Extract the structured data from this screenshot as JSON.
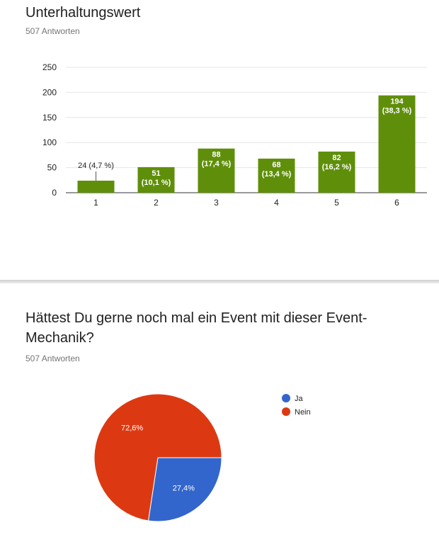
{
  "question1": {
    "title": "Unterhaltungswert",
    "responses": "507 Antworten"
  },
  "question2": {
    "title": "Hättest Du gerne noch mal ein Event mit dieser Event-Mechanik?",
    "responses": "507 Antworten"
  },
  "colors": {
    "bar": "#5f8f0a",
    "gridline": "#e6e6e6",
    "ja": "#3366cc",
    "nein": "#dc3912"
  },
  "chart_data": [
    {
      "type": "bar",
      "title": "Unterhaltungswert",
      "categories": [
        "1",
        "2",
        "3",
        "4",
        "5",
        "6"
      ],
      "values": [
        24,
        51,
        88,
        68,
        82,
        194
      ],
      "labels": [
        [
          "24 (4,7 %)"
        ],
        [
          "51",
          "(10,1 %)"
        ],
        [
          "88",
          "(17,4 %)"
        ],
        [
          "68",
          "(13,4 %)"
        ],
        [
          "82",
          "(16,2 %)"
        ],
        [
          "194",
          "(38,3 %)"
        ]
      ],
      "ylim": [
        0,
        250
      ],
      "yticks": [
        0,
        50,
        100,
        150,
        200,
        250
      ],
      "grid": true
    },
    {
      "type": "pie",
      "title": "Hättest Du gerne noch mal ein Event mit dieser Event-Mechanik?",
      "slices": [
        {
          "label": "Ja",
          "value": 27.4,
          "text": "27,4%"
        },
        {
          "label": "Nein",
          "value": 72.6,
          "text": "72,6%"
        }
      ],
      "legend": "right"
    }
  ]
}
